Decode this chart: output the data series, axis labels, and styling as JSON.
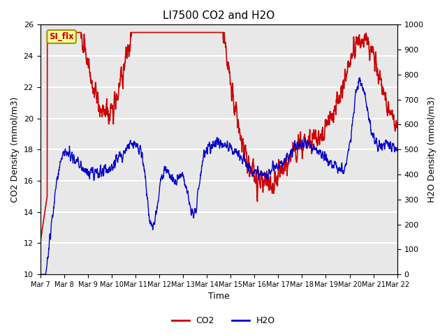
{
  "title": "LI7500 CO2 and H2O",
  "xlabel": "Time",
  "ylabel_left": "CO2 Density (mmol/m3)",
  "ylabel_right": "H2O Density (mmol/m3)",
  "ylim_left": [
    10,
    26
  ],
  "ylim_right": [
    0,
    1000
  ],
  "yticks_left": [
    10,
    12,
    14,
    16,
    18,
    20,
    22,
    24,
    26
  ],
  "yticks_right": [
    0,
    100,
    200,
    300,
    400,
    500,
    600,
    700,
    800,
    900,
    1000
  ],
  "xtick_labels": [
    "Mar 7",
    "Mar 8",
    "Mar 9",
    "Mar 10",
    "Mar 11",
    "Mar 12",
    "Mar 13",
    "Mar 14",
    "Mar 15",
    "Mar 16",
    "Mar 17",
    "Mar 18",
    "Mar 19",
    "Mar 20",
    "Mar 21",
    "Mar 22"
  ],
  "n_points": 2000,
  "co2_color": "#cc0000",
  "h2o_color": "#0000cc",
  "bg_color": "#e8e8e8",
  "grid_color": "#ffffff",
  "annotation_text": "SI_flx",
  "annotation_bg": "#ffff99",
  "annotation_border": "#999900",
  "legend_co2": "CO2",
  "legend_h2o": "H2O",
  "co2_linewidth": 1.2,
  "h2o_linewidth": 1.0,
  "title_fontsize": 11,
  "axis_label_fontsize": 9,
  "tick_fontsize": 8,
  "xtick_fontsize": 7
}
